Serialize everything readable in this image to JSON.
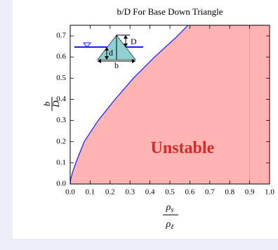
{
  "chart_data": {
    "type": "line",
    "title": "b/D For Base Down Triangle",
    "ylabel": {
      "numerator": "b",
      "denominator": "D"
    },
    "xlabel": {
      "numerator": "ρ",
      "numerator_sub": "s",
      "denominator": "ρ",
      "denominator_sub": "ℓ"
    },
    "x": [
      0,
      0.002,
      0.01,
      0.028,
      0.07,
      0.14,
      0.225,
      0.317,
      0.423,
      0.539,
      0.59
    ],
    "series": [
      {
        "color": "#1a1aff",
        "values": [
          0,
          0.02,
          0.05,
          0.1,
          0.2,
          0.3,
          0.4,
          0.5,
          0.6,
          0.7,
          0.75
        ]
      }
    ],
    "fill_color": "#ffb3b3",
    "reference_line": {
      "x": 0.9,
      "color": "#e89aa4"
    },
    "annotation": {
      "text": "Unstable",
      "x": 0.563,
      "y": 0.165,
      "color": "#d42a2a"
    },
    "inset": {
      "height_label": "D",
      "draft_label": "d",
      "base_label": "b"
    },
    "xlim": [
      0,
      1
    ],
    "ylim": [
      0,
      0.75
    ],
    "xticks": [
      {
        "value": 0,
        "label": "0.0"
      },
      0.1,
      0.2,
      0.3,
      0.4,
      0.5,
      0.6,
      0.7,
      0.8,
      0.9,
      {
        "value": 1,
        "label": "1.0"
      }
    ],
    "yticks": [
      {
        "value": 0,
        "label": "0.0"
      },
      0.1,
      0.2,
      0.3,
      0.4,
      0.5,
      0.6,
      0.7
    ]
  }
}
